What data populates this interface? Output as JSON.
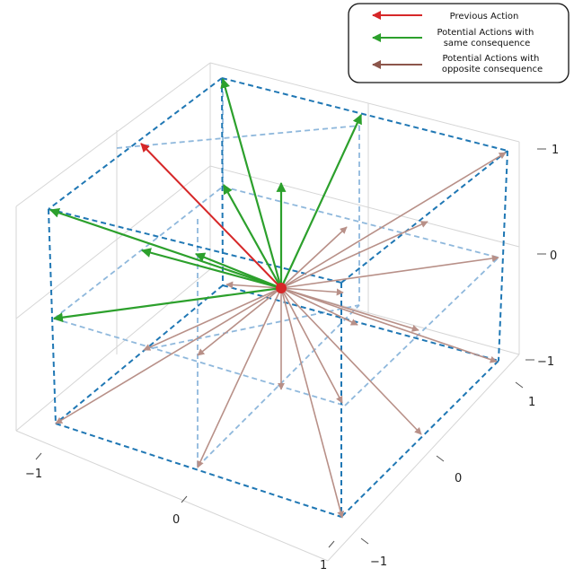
{
  "legend": {
    "items": [
      {
        "label_lines": [
          "Previous Action"
        ],
        "color": "#d62728"
      },
      {
        "label_lines": [
          "Potential Actions with",
          "same consequence"
        ],
        "color": "#2ca02c"
      },
      {
        "label_lines": [
          "Potential Actions with",
          "opposite consequence"
        ],
        "color": "#8c564b"
      }
    ]
  },
  "axes": {
    "z_ticks": [
      "1",
      "0",
      "−1"
    ],
    "y_ticks": [
      "1",
      "0",
      "−1"
    ],
    "x_ticks": [
      "−1",
      "0",
      "1"
    ]
  },
  "colors": {
    "previous": "#d62728",
    "same": "#2ca02c",
    "opposite": "#b89088",
    "cube": "#1f77b4",
    "inner": "#8fb8dc",
    "grid": "#d6d6d6",
    "origin": "#d62728"
  }
}
